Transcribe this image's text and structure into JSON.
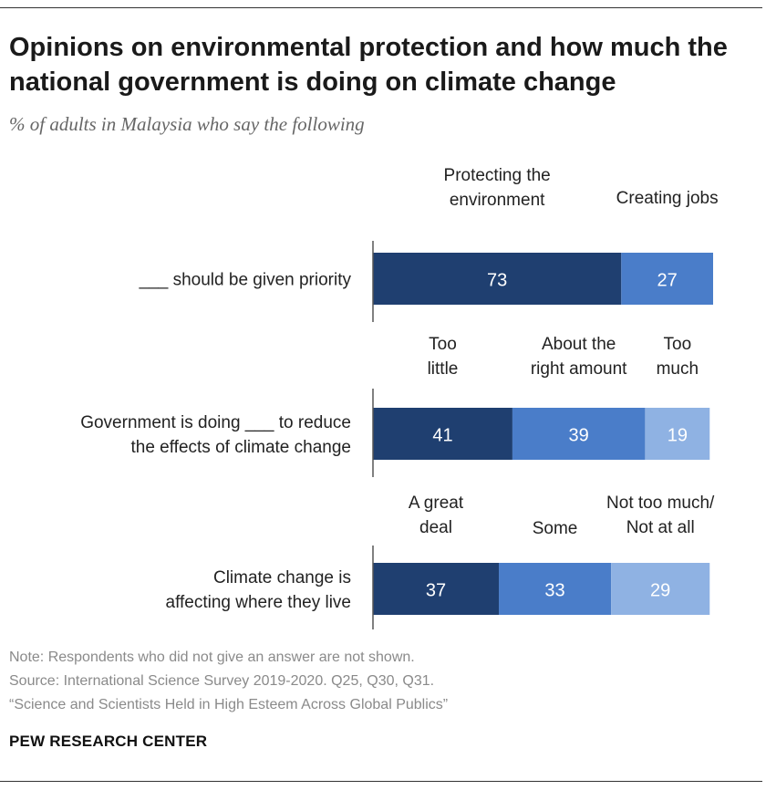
{
  "title": "Opinions on environmental protection and how much the national government is doing on climate change",
  "subtitle": "% of adults in Malaysia who say the following",
  "notes": {
    "note": "Note: Respondents who did not give an answer are not shown.",
    "source": "Source: International Science Survey 2019-2020. Q25, Q30, Q31.",
    "report": "“Science and Scientists Held in High Esteem Across Global Publics”"
  },
  "brand": "PEW RESEARCH CENTER",
  "colors": {
    "dark": "#1f3f70",
    "mid": "#4a7dc9",
    "light": "#8fb2e3",
    "axis": "#555555"
  },
  "chart_data": {
    "type": "bar",
    "orientation": "horizontal-stacked",
    "rows": [
      {
        "label": [
          "___ should be given priority"
        ],
        "segments": [
          {
            "name": [
              "Protecting the",
              "environment"
            ],
            "value": 73,
            "color": "#1f3f70"
          },
          {
            "name": [
              "Creating jobs"
            ],
            "value": 27,
            "color": "#4a7dc9"
          }
        ]
      },
      {
        "label": [
          "Government is doing ___ to reduce",
          "the effects of climate change"
        ],
        "segments": [
          {
            "name": [
              "Too",
              "little"
            ],
            "value": 41,
            "color": "#1f3f70"
          },
          {
            "name": [
              "About the",
              "right amount"
            ],
            "value": 39,
            "color": "#4a7dc9"
          },
          {
            "name": [
              "Too",
              "much"
            ],
            "value": 19,
            "color": "#8fb2e3"
          }
        ]
      },
      {
        "label": [
          "Climate change is",
          "affecting where they live"
        ],
        "segments": [
          {
            "name": [
              "A great",
              "deal"
            ],
            "value": 37,
            "color": "#1f3f70"
          },
          {
            "name": [
              "Some"
            ],
            "value": 33,
            "color": "#4a7dc9"
          },
          {
            "name": [
              "Not too much/",
              "Not at all"
            ],
            "value": 29,
            "color": "#8fb2e3"
          }
        ]
      }
    ],
    "xlim": [
      0,
      100
    ]
  }
}
